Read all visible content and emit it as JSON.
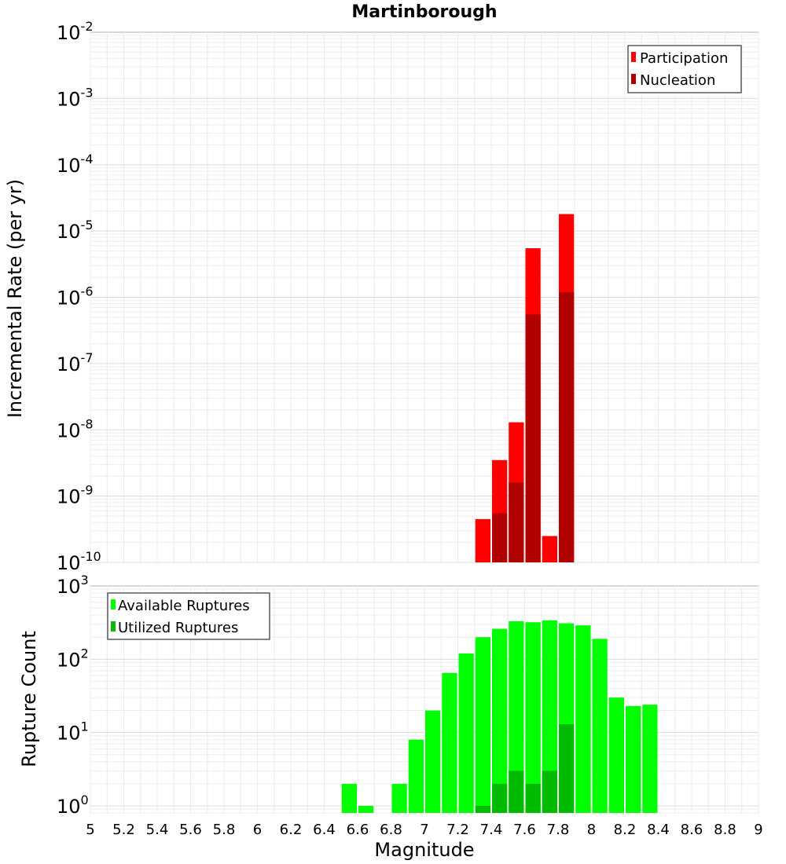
{
  "title": "Martinborough",
  "chart_data": [
    {
      "type": "bar",
      "ylabel": "Incremental Rate (per yr)",
      "xlabel": "",
      "yscale": "log",
      "ylim": [
        1e-10,
        0.01
      ],
      "xlim": [
        5,
        9
      ],
      "grid": true,
      "legend_position": "top-right",
      "series": [
        {
          "name": "Participation",
          "color": "#ff0000",
          "x": [
            7.35,
            7.45,
            7.55,
            7.65,
            7.75,
            7.85
          ],
          "values": [
            4.5e-10,
            3.5e-09,
            1.3e-08,
            5.5e-06,
            2.5e-10,
            1.8e-05
          ]
        },
        {
          "name": "Nucleation",
          "color": "#b00000",
          "x": [
            7.45,
            7.55,
            7.65,
            7.85
          ],
          "values": [
            5.5e-10,
            1.6e-09,
            5.5e-07,
            1.2e-06
          ]
        }
      ]
    },
    {
      "type": "bar",
      "ylabel": "Rupture Count",
      "xlabel": "Magnitude",
      "yscale": "log",
      "ylim": [
        0.8,
        1000
      ],
      "xlim": [
        5,
        9
      ],
      "grid": true,
      "legend_position": "top-left",
      "series": [
        {
          "name": "Available Ruptures",
          "color": "#00ff00",
          "x": [
            6.55,
            6.65,
            6.85,
            6.95,
            7.05,
            7.15,
            7.25,
            7.35,
            7.45,
            7.55,
            7.65,
            7.75,
            7.85,
            7.95,
            8.05,
            8.15,
            8.25,
            8.35
          ],
          "values": [
            2,
            1,
            2,
            8,
            20,
            65,
            120,
            200,
            260,
            330,
            320,
            340,
            310,
            290,
            190,
            30,
            23,
            24
          ]
        },
        {
          "name": "Utilized Ruptures",
          "color": "#00bb00",
          "x": [
            7.35,
            7.45,
            7.55,
            7.65,
            7.75,
            7.85
          ],
          "values": [
            1,
            2,
            3,
            2,
            3,
            13
          ]
        }
      ]
    }
  ],
  "x_ticks": [
    "5",
    "5.2",
    "5.4",
    "5.6",
    "5.8",
    "6",
    "6.2",
    "6.4",
    "6.6",
    "6.8",
    "7",
    "7.2",
    "7.4",
    "7.6",
    "7.8",
    "8",
    "8.2",
    "8.4",
    "8.6",
    "8.8",
    "9"
  ],
  "top_yticks": [
    {
      "base": "10",
      "exp": "-2"
    },
    {
      "base": "10",
      "exp": "-3"
    },
    {
      "base": "10",
      "exp": "-4"
    },
    {
      "base": "10",
      "exp": "-5"
    },
    {
      "base": "10",
      "exp": "-6"
    },
    {
      "base": "10",
      "exp": "-7"
    },
    {
      "base": "10",
      "exp": "-8"
    },
    {
      "base": "10",
      "exp": "-9"
    },
    {
      "base": "10",
      "exp": "-10"
    }
  ],
  "bottom_yticks": [
    {
      "base": "10",
      "exp": "3"
    },
    {
      "base": "10",
      "exp": "2"
    },
    {
      "base": "10",
      "exp": "1"
    },
    {
      "base": "10",
      "exp": "0"
    }
  ]
}
